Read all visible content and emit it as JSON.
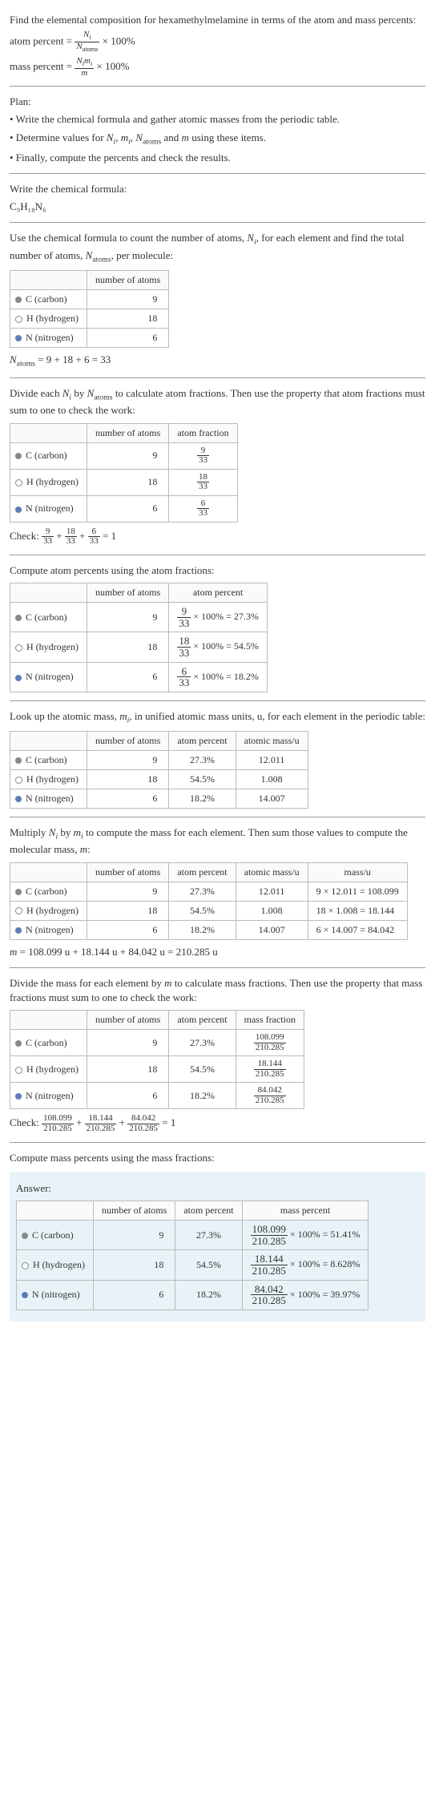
{
  "intro": {
    "q": "Find the elemental composition for hexamethylmelamine in terms of the atom and mass percents:",
    "atom_pct_label": "atom percent =",
    "atom_pct_rhs_num": "N_i",
    "atom_pct_rhs_den": "N_atoms",
    "times100": "× 100%",
    "mass_pct_label": "mass percent =",
    "mass_pct_rhs_num": "N_i m_i",
    "mass_pct_rhs_den": "m"
  },
  "plan": {
    "title": "Plan:",
    "b1": "• Write the chemical formula and gather atomic masses from the periodic table.",
    "b2": "• Determine values for N_i, m_i, N_atoms and m using these items.",
    "b3": "• Finally, compute the percents and check the results."
  },
  "formula": {
    "lead": "Write the chemical formula:",
    "text": "C₉H₁₈N₆"
  },
  "count": {
    "lead": "Use the chemical formula to count the number of atoms, N_i, for each element and find the total number of atoms, N_atoms, per molecule:",
    "h1": "number of atoms",
    "rows": [
      {
        "dot": "#888",
        "el": "C (carbon)",
        "n": "9"
      },
      {
        "dot": "open",
        "el": "H (hydrogen)",
        "n": "18"
      },
      {
        "dot": "#5b7fb5",
        "el": "N (nitrogen)",
        "n": "6"
      }
    ],
    "sum": "N_atoms = 9 + 18 + 6 = 33"
  },
  "atomfrac": {
    "lead": "Divide each N_i by N_atoms to calculate atom fractions. Then use the property that atom fractions must sum to one to check the work:",
    "h1": "number of atoms",
    "h2": "atom fraction",
    "rows": [
      {
        "dot": "#888",
        "el": "C (carbon)",
        "n": "9",
        "fn": "9",
        "fd": "33"
      },
      {
        "dot": "open",
        "el": "H (hydrogen)",
        "n": "18",
        "fn": "18",
        "fd": "33"
      },
      {
        "dot": "#5b7fb5",
        "el": "N (nitrogen)",
        "n": "6",
        "fn": "6",
        "fd": "33"
      }
    ],
    "check": "Check: ",
    "check_eq": " = 1"
  },
  "atompct": {
    "lead": "Compute atom percents using the atom fractions:",
    "h1": "number of atoms",
    "h2": "atom percent",
    "rows": [
      {
        "dot": "#888",
        "el": "C (carbon)",
        "n": "9",
        "fn": "9",
        "fd": "33",
        "res": " × 100% = 27.3%"
      },
      {
        "dot": "open",
        "el": "H (hydrogen)",
        "n": "18",
        "fn": "18",
        "fd": "33",
        "res": " × 100% = 54.5%"
      },
      {
        "dot": "#5b7fb5",
        "el": "N (nitrogen)",
        "n": "6",
        "fn": "6",
        "fd": "33",
        "res": " × 100% = 18.2%"
      }
    ]
  },
  "masses": {
    "lead": "Look up the atomic mass, m_i, in unified atomic mass units, u, for each element in the periodic table:",
    "h1": "number of atoms",
    "h2": "atom percent",
    "h3": "atomic mass/u",
    "rows": [
      {
        "dot": "#888",
        "el": "C (carbon)",
        "n": "9",
        "p": "27.3%",
        "m": "12.011"
      },
      {
        "dot": "open",
        "el": "H (hydrogen)",
        "n": "18",
        "p": "54.5%",
        "m": "1.008"
      },
      {
        "dot": "#5b7fb5",
        "el": "N (nitrogen)",
        "n": "6",
        "p": "18.2%",
        "m": "14.007"
      }
    ]
  },
  "massprod": {
    "lead": "Multiply N_i by m_i to compute the mass for each element. Then sum those values to compute the molecular mass, m:",
    "h1": "number of atoms",
    "h2": "atom percent",
    "h3": "atomic mass/u",
    "h4": "mass/u",
    "rows": [
      {
        "dot": "#888",
        "el": "C (carbon)",
        "n": "9",
        "p": "27.3%",
        "m": "12.011",
        "mm": "9 × 12.011 = 108.099"
      },
      {
        "dot": "open",
        "el": "H (hydrogen)",
        "n": "18",
        "p": "54.5%",
        "m": "1.008",
        "mm": "18 × 1.008 = 18.144"
      },
      {
        "dot": "#5b7fb5",
        "el": "N (nitrogen)",
        "n": "6",
        "p": "18.2%",
        "m": "14.007",
        "mm": "6 × 14.007 = 84.042"
      }
    ],
    "sum": "m = 108.099 u + 18.144 u + 84.042 u = 210.285 u"
  },
  "massfrac": {
    "lead": "Divide the mass for each element by m to calculate mass fractions. Then use the property that mass fractions must sum to one to check the work:",
    "h1": "number of atoms",
    "h2": "atom percent",
    "h3": "mass fraction",
    "rows": [
      {
        "dot": "#888",
        "el": "C (carbon)",
        "n": "9",
        "p": "27.3%",
        "fn": "108.099",
        "fd": "210.285"
      },
      {
        "dot": "open",
        "el": "H (hydrogen)",
        "n": "18",
        "p": "54.5%",
        "fn": "18.144",
        "fd": "210.285"
      },
      {
        "dot": "#5b7fb5",
        "el": "N (nitrogen)",
        "n": "6",
        "p": "18.2%",
        "fn": "84.042",
        "fd": "210.285"
      }
    ],
    "check": "Check: ",
    "check_eq": " = 1"
  },
  "final": {
    "lead": "Compute mass percents using the mass fractions:",
    "answer": "Answer:",
    "h1": "number of atoms",
    "h2": "atom percent",
    "h3": "mass percent",
    "rows": [
      {
        "dot": "#888",
        "el": "C (carbon)",
        "n": "9",
        "p": "27.3%",
        "fn": "108.099",
        "fd": "210.285",
        "res": " × 100% = 51.41%"
      },
      {
        "dot": "open",
        "el": "H (hydrogen)",
        "n": "18",
        "p": "54.5%",
        "fn": "18.144",
        "fd": "210.285",
        "res": " × 100% = 8.628%"
      },
      {
        "dot": "#5b7fb5",
        "el": "N (nitrogen)",
        "n": "6",
        "p": "18.2%",
        "fn": "84.042",
        "fd": "210.285",
        "res": " × 100% = 39.97%"
      }
    ]
  }
}
